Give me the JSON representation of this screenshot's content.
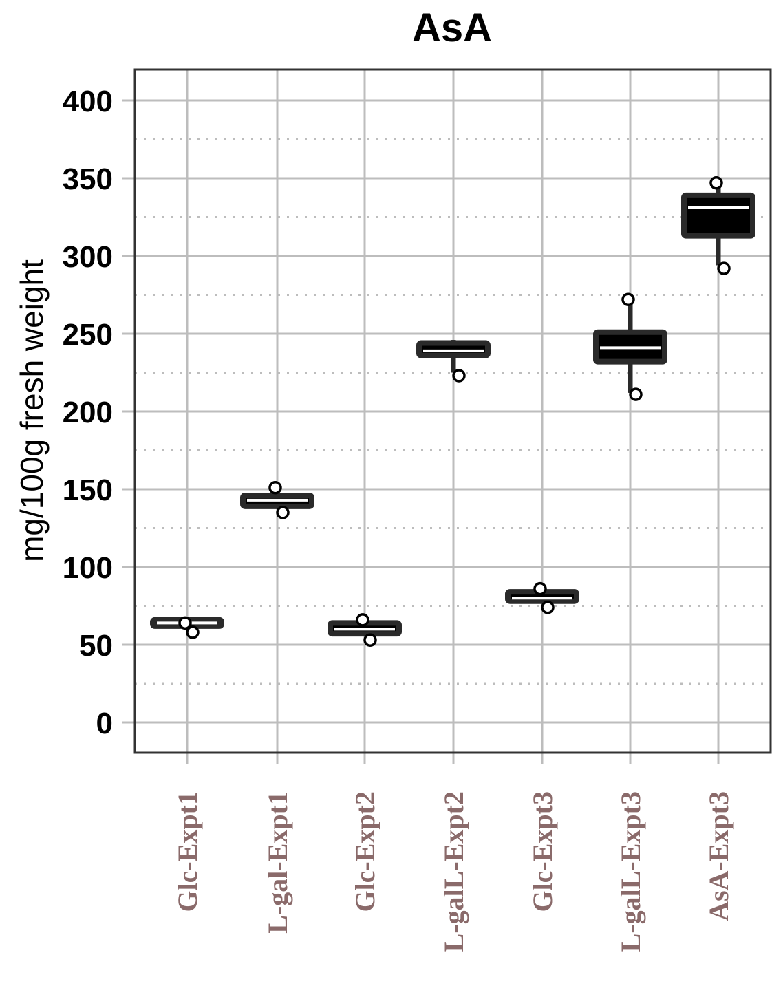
{
  "chart_data": {
    "type": "box",
    "title": "AsA",
    "xlabel": "",
    "ylabel": "mg/100g fresh weight",
    "ylim": [
      -20,
      425
    ],
    "yticks": [
      0,
      50,
      100,
      150,
      200,
      250,
      300,
      350,
      400
    ],
    "ytick_labels": [
      "0",
      "50",
      "100",
      "150",
      "200",
      "250",
      "300",
      "350",
      "400"
    ],
    "grid": true,
    "categories": [
      "Glc-Expt1",
      "L-gal-Expt1",
      "Glc-Expt2",
      "L-galL-Expt2",
      "Glc-Expt3",
      "L-galL-Expt3",
      "AsA-Expt3"
    ],
    "boxes": [
      {
        "category": "Glc-Expt1",
        "whisker_low": 62,
        "q1": 62,
        "median": 64,
        "q3": 66,
        "whisker_high": 66,
        "outliers": [
          58,
          64
        ]
      },
      {
        "category": "L-gal-Expt1",
        "whisker_low": 139,
        "q1": 139,
        "median": 143,
        "q3": 146,
        "whisker_high": 149,
        "outliers": [
          135,
          151
        ]
      },
      {
        "category": "Glc-Expt2",
        "whisker_low": 57,
        "q1": 57,
        "median": 60,
        "q3": 64,
        "whisker_high": 64,
        "outliers": [
          53,
          66
        ]
      },
      {
        "category": "L-galL-Expt2",
        "whisker_low": 225,
        "q1": 236,
        "median": 239,
        "q3": 244,
        "whisker_high": 246,
        "outliers": [
          223
        ]
      },
      {
        "category": "Glc-Expt3",
        "whisker_low": 78,
        "q1": 78,
        "median": 80,
        "q3": 84,
        "whisker_high": 84,
        "outliers": [
          74,
          86
        ]
      },
      {
        "category": "L-galL-Expt3",
        "whisker_low": 212,
        "q1": 232,
        "median": 241,
        "q3": 251,
        "whisker_high": 272,
        "outliers": [
          211,
          272
        ]
      },
      {
        "category": "AsA-Expt3",
        "whisker_low": 294,
        "q1": 313,
        "median": 331,
        "q3": 339,
        "whisker_high": 347,
        "outliers": [
          292,
          347
        ]
      }
    ],
    "colors": {
      "box_fill": "#000000",
      "box_stroke": "#2a2a2a",
      "median": "#ffffff",
      "grid_major": "#bdbdbd",
      "grid_minor": "#bdbdbd",
      "panel_border": "#333333",
      "x_tick_text": "#8a6a6a"
    }
  }
}
